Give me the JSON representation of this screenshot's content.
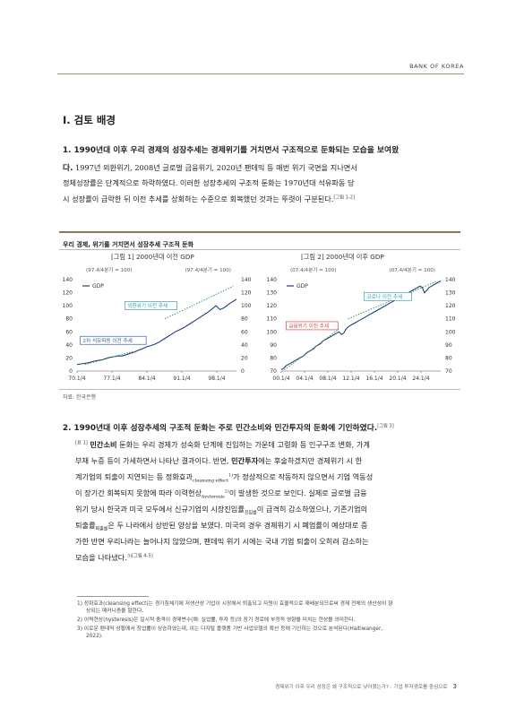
{
  "header": {
    "brand": "BANK OF KOREA"
  },
  "section_title": "Ⅰ. 검토 배경",
  "para1": {
    "lead_a": "1. 1990년대 이후 우리 경제의 성장추세는 경제위기를 거치면서 구조적으로 둔화되는 모습을 보여왔",
    "lead_b": "다.",
    "line1_rest": " 1997년 외환위기, 2008년 글로벌 금융위기, 2020년 팬데믹 등 매번 위기 국면을 지나면서",
    "line2": "정체성장률은 단계적으로 하락하였다. 이러한 성장추세의 구조적 둔화는 1970년대 석유파동 당",
    "line3": "시 성장률이 급락한 뒤 이전 추세를 상회하는 수준으로 회복했던 것과는 뚜렷이 구분된다.",
    "line3_ref": "[그림 1-2]"
  },
  "box": {
    "title": "우리 경제, 위기를 거치면서 성장추세 구조적 둔화",
    "source": "자료: 한국은행"
  },
  "chart_data": [
    {
      "type": "line",
      "title": "[그림 1] 2000년대 이전 GDP",
      "left_note": "(97.4/4분기 = 100)",
      "right_note": "(97.4/4분기 = 100)",
      "legend": "GDP",
      "legend_placement": "top-left",
      "annotations": [
        "외환위기 이전 추세",
        "2차 석유파동 이전 추세"
      ],
      "x_ticks": [
        "70.1/4",
        "77.1/4",
        "84.1/4",
        "91.1/4",
        "98.1/4"
      ],
      "y_ticks": [
        0,
        20,
        40,
        60,
        80,
        100,
        120,
        140
      ],
      "ylim": [
        0,
        140
      ],
      "series": [
        {
          "name": "GDP",
          "values": [
            10,
            11,
            12,
            13,
            15,
            16,
            17,
            19,
            21,
            22,
            23,
            23,
            25,
            27,
            29,
            32,
            34,
            37,
            39,
            41,
            44,
            48,
            52,
            56,
            60,
            63,
            66,
            70,
            74,
            78,
            82,
            86,
            90,
            95,
            100,
            94,
            97,
            102,
            106,
            110
          ]
        }
      ],
      "trend_lines": [
        {
          "name": "2차 석유파동 이전 추세",
          "values": [
            10,
            30
          ]
        },
        {
          "name": "외환위기 이전 추세",
          "values": [
            80,
            130
          ]
        }
      ],
      "grid": false
    },
    {
      "type": "line",
      "title": "[그림 2] 2000년대 이후 GDP",
      "left_note": "(07.4/4분기 = 100)",
      "right_note": "(07.4/4분기 = 100)",
      "legend": "GDP",
      "legend_placement": "top-left",
      "annotations": [
        "코로나 이전 추세",
        "금융위기 이전 추세"
      ],
      "x_ticks": [
        "00.1/4",
        "04.1/4",
        "08.1/4",
        "12.1/4",
        "16.1/4",
        "20.1/4",
        "24.1/4"
      ],
      "y_ticks": [
        70,
        80,
        90,
        100,
        110,
        120,
        130,
        140
      ],
      "ylim": [
        70,
        140
      ],
      "series": [
        {
          "name": "GDP",
          "values": [
            71,
            72,
            74,
            75,
            76,
            77,
            78,
            79,
            80,
            81,
            82,
            84,
            85,
            86,
            87,
            89,
            90,
            91,
            93,
            94,
            95,
            96,
            97,
            98,
            99,
            100,
            98,
            99,
            102,
            104,
            105,
            106,
            107,
            108,
            109,
            110,
            111,
            112,
            113,
            114,
            115,
            116,
            117,
            118,
            119,
            120,
            121,
            122,
            123,
            124,
            125,
            126,
            127,
            128,
            129,
            130,
            131,
            132,
            133,
            134,
            135,
            134,
            130,
            132,
            134,
            135,
            136,
            137,
            138,
            139
          ]
        }
      ],
      "trend_lines": [
        {
          "name": "금융위기 이전 추세",
          "values": [
            71,
            102
          ]
        },
        {
          "name": "코로나 이전 추세",
          "values": [
            110,
            139
          ]
        }
      ],
      "grid": false
    }
  ],
  "para2": {
    "lead": "2. 1990년대 이후 성장추세의 구조적 둔화는 주로 민간소비와 민간투자의 둔화에 기인하였다.",
    "lead_ref": "[그림 3]",
    "l1_ref": "[표 1]",
    "l1_hl": "민간소비",
    "l1_rest": " 둔화는 우리 경제가 성숙화 단계에 진입하는 가운데 고령화 등 인구구조 변화, 가계",
    "l2": "부채 누증 등이 가세하면서 나타난 결과이다. 반면,",
    "l2_hl": "민간투자",
    "l2_rest": "에는 후술하겠지만 경제위기 시 한",
    "l3a": "계기업의 퇴출이 지연되는 등 정화효과",
    "l3_sub": "cleansing effect",
    "l3_sup": "1)",
    "l3b": "가 정상적으로 작동하지 않으면서 기업 역동성",
    "l4a": "이 장기간 회복되지 못함에 따라 이력현상",
    "l4_sub": "hysteresis",
    "l4_sup": "2)",
    "l4b": "이 발생한 것으로 보인다. 실제로 글로벌 금융",
    "l5a": "위기 당시 한국과 미국 모두에서 신규기업의 시장진입률",
    "l5_sub": "진입률",
    "l5b": "이 급격히 감소하였으나, 기존기업의",
    "l6a": "퇴출률",
    "l6_sub": "퇴출률",
    "l6b": "은 두 나라에서 상반된 양상을 보였다. 미국의 경우 경제위기 시 폐업률이 예상대로 증",
    "l7": "가한 반면 우리나라는 늘어나지 않았으며, 팬데믹 위기 시에는 국내 기업 퇴출이 오히려 감소하는",
    "l8": "모습을 나타냈다.",
    "l8_sup": "3)",
    "l8_ref": "[그림 4-5]"
  },
  "footnotes": [
    "1) 정화효과(cleansing effect)는 경기침체기에 저생산성 기업이 시장에서 퇴출되고 자원이 효율적으로 재배분되므로써 경제 전체의 생산성이 향",
    "    상되는 메커니즘을 말한다.",
    "2) 이력현상(hysteresis)은 일시적 충격이 경제변수(예: 실업률, 투자 등)의 장기 경로에 부정적 영향을 미치는 현상을 의미한다.",
    "3) 이로운 팬데믹 상황에서 창업률이 상승하였는데, 이는 디지털 플랫폼 기반 사업모델의 확산 등에 기인하는 것으로 분석된다(Haltiwanger,",
    "    2022)."
  ],
  "footer": {
    "text": "경제위기 이후 우리 성장은 왜 구조적으로 낮아졌는가? : 기업 투자경로를 중심으로",
    "page": "3"
  },
  "colors": {
    "accent": "#a6926a",
    "gdp_line": "#1f3f7a",
    "trend_dot": "#2e8b57",
    "box_teal": "#3aa0a8",
    "box_blue": "#3a5fb0",
    "box_red": "#d04a4a"
  }
}
